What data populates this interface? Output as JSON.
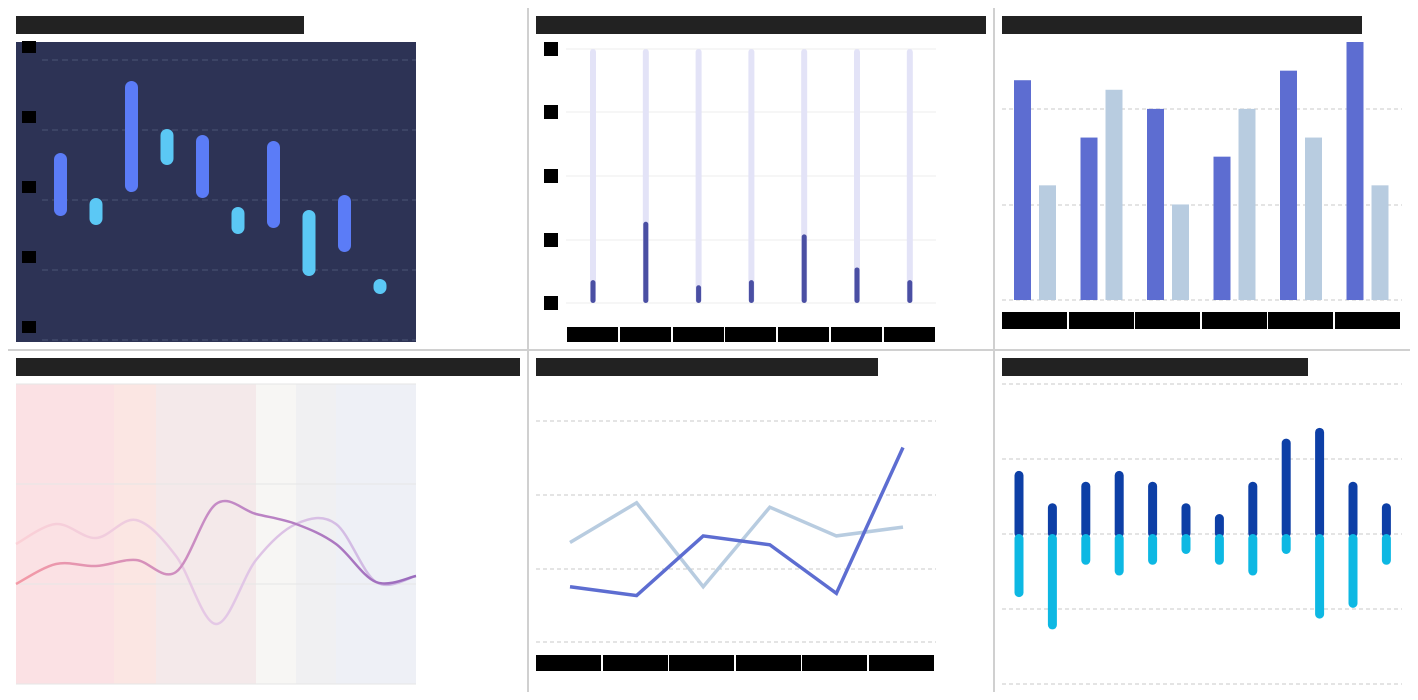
{
  "theme": {
    "title_bar": "#222222",
    "label_block": "#000000",
    "divider": "#d0d0d0"
  },
  "panels": [
    {
      "id": "p1",
      "title": ""
    },
    {
      "id": "p2",
      "title": ""
    },
    {
      "id": "p3",
      "title": ""
    },
    {
      "id": "p4",
      "title": ""
    },
    {
      "id": "p5",
      "title": ""
    },
    {
      "id": "p6",
      "title": ""
    }
  ],
  "chart_data": [
    {
      "id": "p1",
      "type": "floating-bar",
      "background": "#2d3355",
      "grid": "dashed",
      "colors": {
        "rise": "#5b7cf7",
        "fall": "#5bc8f5"
      },
      "ylim": [
        0,
        100
      ],
      "ranges": [
        {
          "low": 42,
          "high": 63,
          "kind": "rise"
        },
        {
          "low": 39,
          "high": 48,
          "kind": "fall"
        },
        {
          "low": 50,
          "high": 87,
          "kind": "rise"
        },
        {
          "low": 59,
          "high": 71,
          "kind": "fall"
        },
        {
          "low": 48,
          "high": 69,
          "kind": "rise"
        },
        {
          "low": 36,
          "high": 45,
          "kind": "fall"
        },
        {
          "low": 38,
          "high": 67,
          "kind": "rise"
        },
        {
          "low": 22,
          "high": 44,
          "kind": "fall"
        },
        {
          "low": 30,
          "high": 49,
          "kind": "rise"
        },
        {
          "low": 16,
          "high": 21,
          "kind": "fall"
        }
      ]
    },
    {
      "id": "p2",
      "type": "bar",
      "colors": {
        "value": "#4a4fa3",
        "track": "#e3e3f7"
      },
      "ylim": [
        0,
        100
      ],
      "values": [
        9,
        32,
        7,
        9,
        27,
        14,
        9
      ]
    },
    {
      "id": "p3",
      "type": "bar",
      "grid": "dashed",
      "colors": {
        "a": "#5d6dd1",
        "b": "#b8cce0"
      },
      "ylim": [
        0,
        270
      ],
      "series": [
        {
          "values": [
            230,
            170,
            200,
            150,
            240,
            270
          ]
        },
        {
          "values": [
            120,
            220,
            100,
            200,
            170,
            120
          ]
        }
      ]
    },
    {
      "id": "p4",
      "type": "line",
      "bands": [
        "#fbe1e4",
        "#fbe6e3",
        "#f4e9ea",
        "#f7f6f4",
        "#f0f0f2",
        "#eef0f6"
      ],
      "series": [
        {
          "color": "#f4a3ad",
          "values": [
            50,
            60,
            59,
            62,
            56,
            90,
            85,
            80,
            70,
            51,
            54
          ]
        },
        {
          "color": "#fbd0d6",
          "values": [
            70,
            80,
            73,
            82,
            64,
            30,
            62,
            80,
            80,
            51,
            54
          ]
        }
      ],
      "ylim": [
        0,
        150
      ]
    },
    {
      "id": "p5",
      "type": "line",
      "grid": "dashed",
      "series": [
        {
          "color": "#b8cce0",
          "values": [
            45,
            63,
            25,
            61,
            48,
            52
          ]
        },
        {
          "color": "#5d6dd1",
          "values": [
            25,
            21,
            48,
            44,
            22,
            88
          ]
        }
      ],
      "ylim": [
        0,
        100
      ]
    },
    {
      "id": "p6",
      "type": "diverging-bar",
      "grid": "dashed",
      "colors": {
        "positive": "#0d3fa6",
        "negative": "#0db8e3"
      },
      "ylim": [
        -140,
        200
      ],
      "positive": [
        82,
        40,
        68,
        82,
        68,
        40,
        26,
        68,
        124,
        138,
        68,
        40
      ],
      "negative": [
        -82,
        -124,
        -40,
        -54,
        -40,
        -26,
        -40,
        -54,
        -26,
        -110,
        -96,
        -40
      ]
    }
  ]
}
